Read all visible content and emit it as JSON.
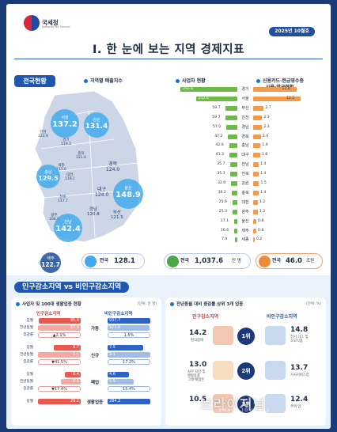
{
  "header": {
    "org": "국세청",
    "org_sub": "National Tax Service",
    "date": "2025년 10월호",
    "title": "I. 한 눈에 보는 지역 경제지표"
  },
  "section1": {
    "label": "전국현황",
    "sales_caption": "지역별 매출지수",
    "biz_caption": "사업자 현황",
    "card_caption_1": "신용카드·현금영수증",
    "card_caption_2": "사용·발급현황",
    "sales_total_label": "전국",
    "sales_total": "128.1",
    "biz_total_label": "전국",
    "biz_total": "1,037.6",
    "biz_unit": "만 명",
    "card_total_label": "전국",
    "card_total": "46.0",
    "card_unit": "조원"
  },
  "map_regions": [
    {
      "name": "서울",
      "value": "137.2"
    },
    {
      "name": "강원",
      "value": "131.4"
    },
    {
      "name": "인천",
      "value": "121.9"
    },
    {
      "name": "경기",
      "value": "119.3"
    },
    {
      "name": "충북",
      "value": "121.4"
    },
    {
      "name": "세종",
      "value": "115.6"
    },
    {
      "name": "충남",
      "value": "129.5"
    },
    {
      "name": "대전",
      "value": "119.1"
    },
    {
      "name": "경북",
      "value": "124.0"
    },
    {
      "name": "대구",
      "value": "124.0"
    },
    {
      "name": "전북",
      "value": "117.7"
    },
    {
      "name": "울산",
      "value": "148.9"
    },
    {
      "name": "광주",
      "value": "106.8"
    },
    {
      "name": "경남",
      "value": "120.8"
    },
    {
      "name": "부산",
      "value": "121.5"
    },
    {
      "name": "전남",
      "value": "142.4"
    },
    {
      "name": "제주",
      "value": "122.7"
    }
  ],
  "chart_data": [
    {
      "type": "bar",
      "series": [
        {
          "name": "사업자 현황",
          "values": [
            292.6,
            212.6,
            59.7,
            59.7,
            57.0,
            47.2,
            42.6,
            41.3,
            35.7,
            35.3,
            32.0,
            30.2,
            25.9,
            25.3,
            17.1,
            16.6,
            7.0
          ]
        },
        {
          "name": "신용카드·현금영수증 사용·발급현황",
          "values": [
            11.0,
            12.1,
            2.7,
            2.3,
            2.3,
            2.0,
            1.9,
            1.8,
            1.4,
            1.4,
            1.5,
            1.4,
            1.2,
            1.2,
            0.8,
            0.8,
            0.2
          ]
        }
      ],
      "categories": [
        "경기",
        "서울",
        "부산",
        "인천",
        "경남",
        "경북",
        "충남",
        "대구",
        "전남",
        "전북",
        "강원",
        "충북",
        "대전",
        "광주",
        "울산",
        "제주",
        "세종"
      ]
    },
    {
      "type": "bar",
      "title": "사업자 및 100대 생활업종 현황",
      "unit": "(단위: 만 명)",
      "categories": [
        "가동",
        "신규",
        "폐업",
        "생활업종"
      ],
      "series": [
        {
          "name": "인구감소지역",
          "values": [
            95.9,
            0.7,
            0.4,
            29.2
          ]
        },
        {
          "name": "비인구감소지역",
          "values": [
            937.7,
            7.5,
            4.6,
            284.2
          ]
        }
      ]
    }
  ],
  "section2": {
    "label": "인구감소지역 vs 비인구감소지역",
    "left_caption": "사업자 및 100대 생활업종 현황",
    "left_unit": "(단위: 만 명)",
    "legend_dec": "인구감소지역",
    "legend_non": "비인구감소지역",
    "groups": [
      {
        "name": "가동",
        "rows": [
          {
            "r": "당월",
            "a": "95.9",
            "b": "937.7"
          },
          {
            "r": "전년동월",
            "a": "97.9",
            "b": "923.0"
          },
          {
            "r": "증감률",
            "a": "▲2.1%",
            "b": "1.6%"
          }
        ]
      },
      {
        "name": "신규",
        "rows": [
          {
            "r": "당월",
            "a": "0.7",
            "b": "7.5"
          },
          {
            "r": "전년동월",
            "a": "1.1",
            "b": "9.1"
          },
          {
            "r": "증감률",
            "a": "▼41.5%",
            "b": "17.2%"
          }
        ]
      },
      {
        "name": "폐업",
        "rows": [
          {
            "r": "당월",
            "a": "0.4",
            "b": "4.6"
          },
          {
            "r": "전년동월",
            "a": "0.5",
            "b": "5.5"
          },
          {
            "r": "증감률",
            "a": "▼17.4%",
            "b": "15.4%"
          }
        ]
      },
      {
        "name": "생활업종",
        "rows": [
          {
            "r": "당월",
            "a": "29.2",
            "b": "284.2"
          }
        ]
      }
    ],
    "right_caption": "전년동월 대비 증감률 상위 3개 업종",
    "right_unit": "(단위: %)",
    "ranks": [
      {
        "rank": "1위",
        "dec_val": "14.2",
        "dec_lbl": "편의점에",
        "non_val": "14.8",
        "non_lbl_1": "전기 가스 및",
        "non_lbl_2": "소모식품"
      },
      {
        "rank": "2위",
        "dec_val": "13.0",
        "dec_lbl_1": "사무 자산 및",
        "dec_lbl_2": "렌탈용품",
        "dec_lbl_3": "그래 배합본",
        "non_val": "13.7",
        "non_lbl_1": "가사서비스업"
      },
      {
        "rank": "3위",
        "dec_val": "10.5",
        "dec_lbl": "",
        "non_val": "12.4",
        "non_lbl_1": "주택 업"
      }
    ]
  },
  "watermark": {
    "text": "브라이저널",
    "sub": "BRAIN JOURNAL"
  }
}
